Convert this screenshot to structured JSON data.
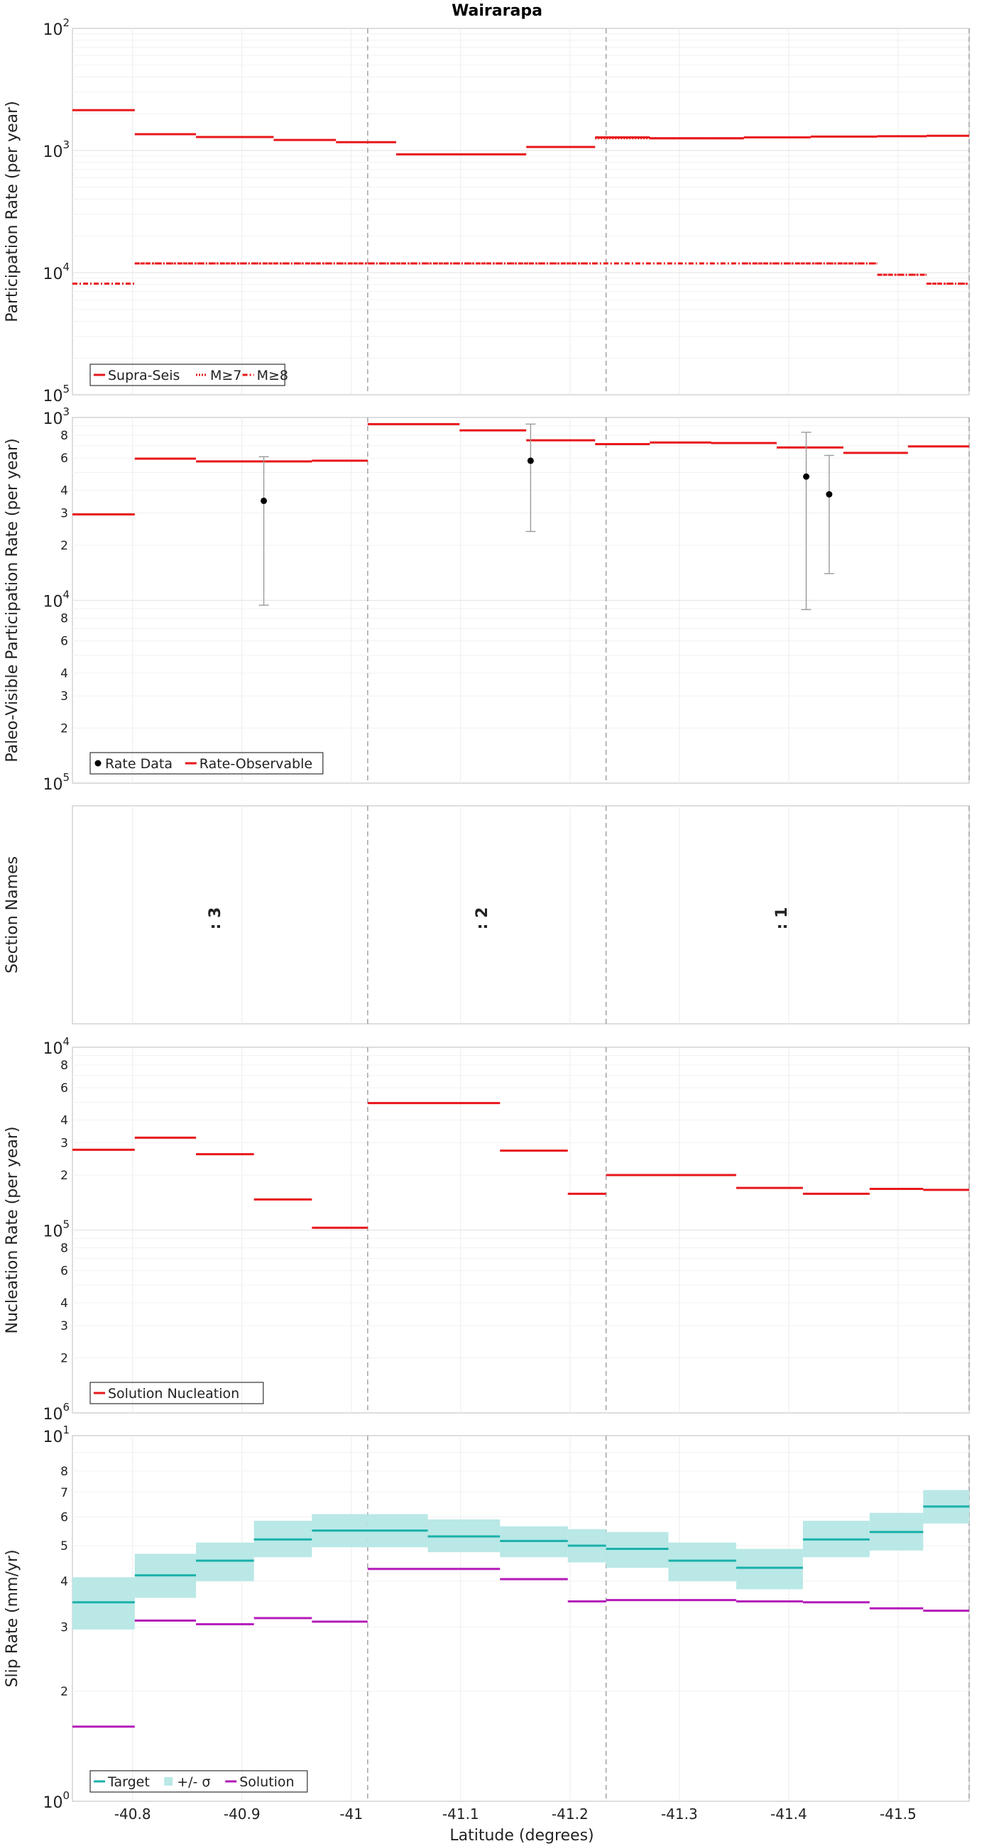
{
  "title": "Wairarapa",
  "xlabel": "Latitude (degrees)",
  "x_ticks": [
    "-40.8",
    "-40.9",
    "-41",
    "-41.1",
    "-41.2",
    "-41.3",
    "-41.4",
    "-41.5"
  ],
  "x_tick_values": [
    -40.8,
    -40.9,
    -41.0,
    -41.1,
    -41.2,
    -41.3,
    -41.4,
    -41.5
  ],
  "xlim": [
    -40.745,
    -41.565
  ],
  "section_boundaries": [
    -41.015,
    -41.233,
    -41.565
  ],
  "chart_data": [
    {
      "id": "participation",
      "type": "line",
      "ylabel": "Participation Rate (per year)",
      "yscale": "log",
      "ylim": [
        1e-05,
        0.01
      ],
      "major_ticks": [
        {
          "v": 0.01,
          "mant": "10",
          "exp": "2"
        },
        {
          "v": 0.001,
          "mant": "10",
          "exp": "3"
        },
        {
          "v": 0.0001,
          "mant": "10",
          "exp": "4"
        },
        {
          "v": 1e-05,
          "mant": "10",
          "exp": "5"
        }
      ],
      "minor_ticks": [],
      "legend_position": "bottom-left",
      "series": [
        {
          "name": "Supra-Seis",
          "style": "solid",
          "color": "#e8161a",
          "segments": [
            [
              -40.745,
              -40.802,
              0.00214
            ],
            [
              -40.802,
              -40.858,
              0.00136
            ],
            [
              -40.858,
              -40.929,
              0.00129
            ],
            [
              -40.929,
              -40.986,
              0.00122
            ],
            [
              -40.986,
              -41.041,
              0.00117
            ],
            [
              -41.041,
              -41.16,
              0.00093
            ],
            [
              -41.16,
              -41.223,
              0.00107
            ],
            [
              -41.223,
              -41.273,
              0.00128
            ],
            [
              -41.273,
              -41.359,
              0.00126
            ],
            [
              -41.359,
              -41.42,
              0.00128
            ],
            [
              -41.42,
              -41.481,
              0.0013
            ],
            [
              -41.481,
              -41.526,
              0.00131
            ],
            [
              -41.526,
              -41.565,
              0.00132
            ]
          ]
        },
        {
          "name": "M≥7",
          "style": "dotted",
          "color": "#e8161a",
          "segments": [
            [
              -40.802,
              -41.041,
              0.000119
            ],
            [
              -41.041,
              -41.223,
              0.000119
            ],
            [
              -41.223,
              -41.359,
              0.00126
            ],
            [
              -41.359,
              -41.481,
              0.000119
            ],
            [
              -41.481,
              -41.526,
              9.61e-05
            ],
            [
              -41.526,
              -41.565,
              8.13e-05
            ]
          ]
        },
        {
          "name": "M≥8",
          "style": "dashdot",
          "color": "#e8161a",
          "segments": [
            [
              -40.745,
              -40.802,
              8.13e-05
            ],
            [
              -40.802,
              -41.481,
              0.000119
            ],
            [
              -41.481,
              -41.526,
              9.61e-05
            ],
            [
              -41.526,
              -41.565,
              8.13e-05
            ]
          ]
        }
      ]
    },
    {
      "id": "paleo",
      "type": "line",
      "ylabel": "Paleo-Visible Participation Rate (per year)",
      "yscale": "log",
      "ylim": [
        1e-05,
        0.001
      ],
      "major_ticks": [
        {
          "v": 0.001,
          "mant": "10",
          "exp": "3"
        },
        {
          "v": 0.0001,
          "mant": "10",
          "exp": "4"
        },
        {
          "v": 1e-05,
          "mant": "10",
          "exp": "5"
        }
      ],
      "minor_ticks": [
        {
          "v": 0.0008,
          "label": "8"
        },
        {
          "v": 0.0006,
          "label": "6"
        },
        {
          "v": 0.0004,
          "label": "4"
        },
        {
          "v": 0.0003,
          "label": "3"
        },
        {
          "v": 0.0002,
          "label": "2"
        },
        {
          "v": 8e-05,
          "label": "8"
        },
        {
          "v": 6e-05,
          "label": "6"
        },
        {
          "v": 4e-05,
          "label": "4"
        },
        {
          "v": 3e-05,
          "label": "3"
        },
        {
          "v": 2e-05,
          "label": "2"
        }
      ],
      "legend_position": "bottom-left",
      "series": [
        {
          "name": "Rate-Observable",
          "style": "solid",
          "color": "#e8161a",
          "segments": [
            [
              -40.745,
              -40.802,
              0.000295
            ],
            [
              -40.802,
              -40.858,
              0.000595
            ],
            [
              -40.858,
              -40.964,
              0.000575
            ],
            [
              -40.964,
              -41.015,
              0.00058
            ],
            [
              -41.015,
              -41.099,
              0.00092
            ],
            [
              -41.099,
              -41.16,
              0.00085
            ],
            [
              -41.16,
              -41.223,
              0.00075
            ],
            [
              -41.223,
              -41.273,
              0.000715
            ],
            [
              -41.273,
              -41.329,
              0.00073
            ],
            [
              -41.329,
              -41.389,
              0.000725
            ],
            [
              -41.389,
              -41.45,
              0.000685
            ],
            [
              -41.45,
              -41.509,
              0.00064
            ],
            [
              -41.509,
              -41.565,
              0.000695
            ],
            [
              -41.565,
              -41.565,
              0.000665
            ]
          ]
        }
      ],
      "points_name": "Rate Data",
      "points": [
        {
          "x": -40.92,
          "y": 0.00035,
          "lo": 9.4e-05,
          "hi": 0.00061
        },
        {
          "x": -41.164,
          "y": 0.00058,
          "lo": 0.000238,
          "hi": 0.00092
        },
        {
          "x": -41.416,
          "y": 0.000475,
          "lo": 8.9e-05,
          "hi": 0.00083
        },
        {
          "x": -41.437,
          "y": 0.00038,
          "lo": 0.00014,
          "hi": 0.00062
        }
      ]
    },
    {
      "id": "sections",
      "type": "table",
      "ylabel": "Section Names",
      "labels": [
        {
          "x": -40.88,
          "text": ": 3"
        },
        {
          "x": -41.124,
          "text": ": 2"
        },
        {
          "x": -41.398,
          "text": ": 1"
        }
      ]
    },
    {
      "id": "nucleation",
      "type": "line",
      "ylabel": "Nucleation Rate (per year)",
      "yscale": "log",
      "ylim": [
        1e-06,
        0.0001
      ],
      "major_ticks": [
        {
          "v": 0.0001,
          "mant": "10",
          "exp": "4"
        },
        {
          "v": 1e-05,
          "mant": "10",
          "exp": "5"
        },
        {
          "v": 1e-06,
          "mant": "10",
          "exp": "6"
        }
      ],
      "minor_ticks": [
        {
          "v": 8e-05,
          "label": "8"
        },
        {
          "v": 6e-05,
          "label": "6"
        },
        {
          "v": 4e-05,
          "label": "4"
        },
        {
          "v": 3e-05,
          "label": "3"
        },
        {
          "v": 2e-05,
          "label": "2"
        },
        {
          "v": 8e-06,
          "label": "8"
        },
        {
          "v": 6e-06,
          "label": "6"
        },
        {
          "v": 4e-06,
          "label": "4"
        },
        {
          "v": 3e-06,
          "label": "3"
        },
        {
          "v": 2e-06,
          "label": "2"
        }
      ],
      "legend_position": "bottom-left",
      "series": [
        {
          "name": "Solution Nucleation",
          "style": "solid",
          "color": "#e8161a",
          "segments": [
            [
              -40.745,
              -40.802,
              2.75e-05
            ],
            [
              -40.802,
              -40.858,
              3.2e-05
            ],
            [
              -40.858,
              -40.911,
              2.6e-05
            ],
            [
              -40.911,
              -40.964,
              1.47e-05
            ],
            [
              -40.964,
              -41.015,
              1.03e-05
            ],
            [
              -41.015,
              -41.136,
              4.95e-05
            ],
            [
              -41.136,
              -41.198,
              2.72e-05
            ],
            [
              -41.198,
              -41.233,
              1.58e-05
            ],
            [
              -41.233,
              -41.352,
              2e-05
            ],
            [
              -41.352,
              -41.413,
              1.7e-05
            ],
            [
              -41.413,
              -41.474,
              1.58e-05
            ],
            [
              -41.474,
              -41.523,
              1.68e-05
            ],
            [
              -41.523,
              -41.565,
              1.66e-05
            ]
          ]
        }
      ]
    },
    {
      "id": "slip",
      "type": "line",
      "ylabel": "Slip Rate (mm/yr)",
      "yscale": "log",
      "ylim": [
        1,
        10
      ],
      "major_ticks": [
        {
          "v": 10,
          "mant": "10",
          "exp": "1"
        },
        {
          "v": 1,
          "mant": "10",
          "exp": "0"
        }
      ],
      "minor_ticks": [
        {
          "v": 8,
          "label": "8"
        },
        {
          "v": 7,
          "label": "7"
        },
        {
          "v": 6,
          "label": "6"
        },
        {
          "v": 5,
          "label": "5"
        },
        {
          "v": 4,
          "label": "4"
        },
        {
          "v": 3,
          "label": "3"
        },
        {
          "v": 2,
          "label": "2"
        }
      ],
      "legend_position": "bottom-left",
      "band_name": "+/- σ",
      "band_color": "#b9e8e6",
      "bands": [
        [
          -40.745,
          -40.802,
          2.95,
          4.1
        ],
        [
          -40.802,
          -40.858,
          3.6,
          4.75
        ],
        [
          -40.858,
          -40.911,
          4.0,
          5.1
        ],
        [
          -40.911,
          -40.964,
          4.65,
          5.85
        ],
        [
          -40.964,
          -41.015,
          4.95,
          6.1
        ],
        [
          -41.015,
          -41.07,
          4.95,
          6.1
        ],
        [
          -41.07,
          -41.136,
          4.8,
          5.9
        ],
        [
          -41.136,
          -41.198,
          4.65,
          5.65
        ],
        [
          -41.198,
          -41.233,
          4.5,
          5.55
        ],
        [
          -41.233,
          -41.29,
          4.35,
          5.45
        ],
        [
          -41.29,
          -41.352,
          4.0,
          5.1
        ],
        [
          -41.352,
          -41.413,
          3.8,
          4.9
        ],
        [
          -41.413,
          -41.474,
          4.65,
          5.85
        ],
        [
          -41.474,
          -41.523,
          4.85,
          6.15
        ],
        [
          -41.523,
          -41.565,
          5.75,
          7.1
        ]
      ],
      "series": [
        {
          "name": "Target",
          "style": "solid",
          "color": "#1ab0aa",
          "segments": [
            [
              -40.745,
              -40.802,
              3.5
            ],
            [
              -40.802,
              -40.858,
              4.15
            ],
            [
              -40.858,
              -40.911,
              4.55
            ],
            [
              -40.911,
              -40.964,
              5.2
            ],
            [
              -40.964,
              -41.015,
              5.5
            ],
            [
              -41.015,
              -41.07,
              5.5
            ],
            [
              -41.07,
              -41.136,
              5.3
            ],
            [
              -41.136,
              -41.198,
              5.15
            ],
            [
              -41.198,
              -41.233,
              5.0
            ],
            [
              -41.233,
              -41.29,
              4.9
            ],
            [
              -41.29,
              -41.352,
              4.55
            ],
            [
              -41.352,
              -41.413,
              4.35
            ],
            [
              -41.413,
              -41.474,
              5.2
            ],
            [
              -41.474,
              -41.523,
              5.45
            ],
            [
              -41.523,
              -41.565,
              6.4
            ]
          ]
        },
        {
          "name": "Solution",
          "style": "solid",
          "color": "#b41ab8",
          "segments": [
            [
              -40.745,
              -40.802,
              1.6
            ],
            [
              -40.802,
              -40.858,
              3.12
            ],
            [
              -40.858,
              -40.911,
              3.05
            ],
            [
              -40.911,
              -40.964,
              3.17
            ],
            [
              -40.964,
              -41.015,
              3.1
            ],
            [
              -41.015,
              -41.136,
              4.32
            ],
            [
              -41.136,
              -41.198,
              4.05
            ],
            [
              -41.198,
              -41.233,
              3.52
            ],
            [
              -41.233,
              -41.352,
              3.55
            ],
            [
              -41.352,
              -41.413,
              3.52
            ],
            [
              -41.413,
              -41.474,
              3.5
            ],
            [
              -41.474,
              -41.523,
              3.37
            ],
            [
              -41.523,
              -41.565,
              3.32
            ]
          ]
        }
      ]
    }
  ]
}
